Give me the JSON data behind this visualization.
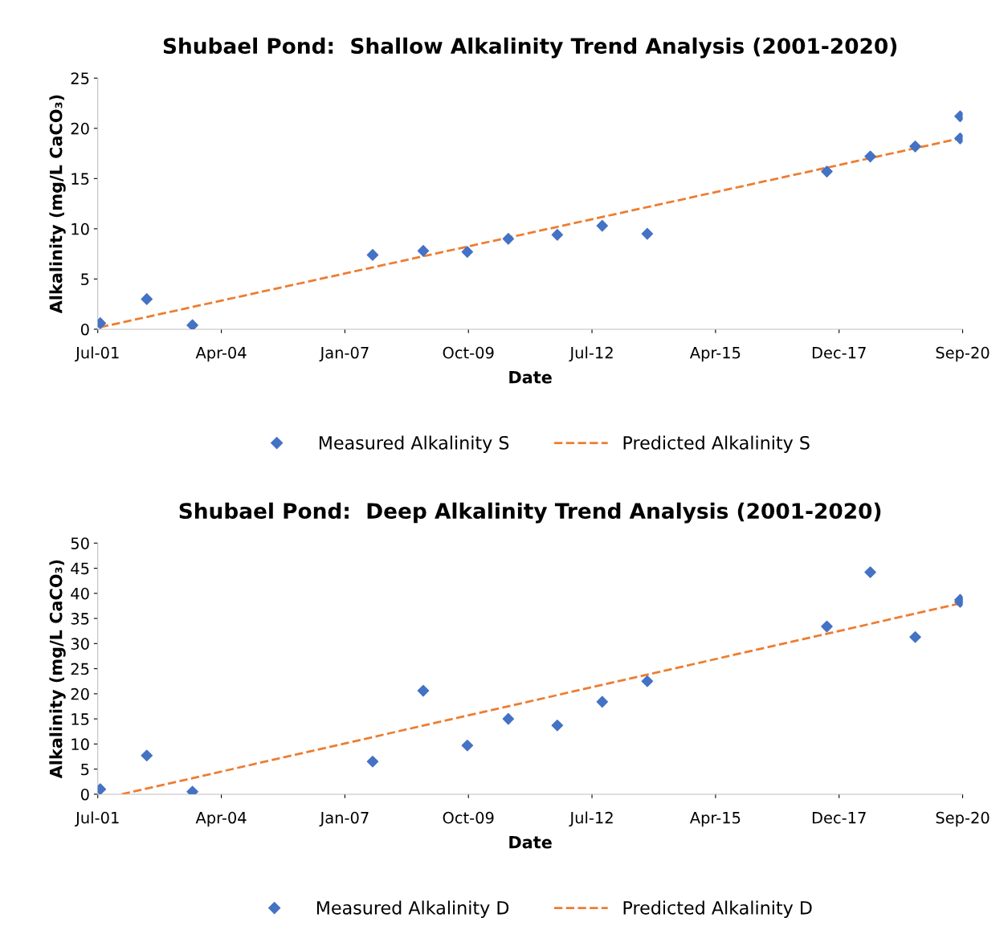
{
  "chart_data": [
    {
      "type": "scatter",
      "title": "Shubael Pond:  Shallow Alkalinity Trend Analysis (2001-2020)",
      "xlabel": "Date",
      "ylabel": "Alkalinity (mg/L CaCO₃)",
      "xlim": [
        "2001-07-20",
        "2020-09-25"
      ],
      "xticks": [
        {
          "value": "2001-07-20",
          "label": "Jul-01"
        },
        {
          "value": "2004-04-16",
          "label": "Apr-04"
        },
        {
          "value": "2007-01-12",
          "label": "Jan-07"
        },
        {
          "value": "2009-10-09",
          "label": "Oct-09"
        },
        {
          "value": "2012-07-06",
          "label": "Jul-12"
        },
        {
          "value": "2015-04-03",
          "label": "Apr-15"
        },
        {
          "value": "2017-12-29",
          "label": "Dec-17"
        },
        {
          "value": "2020-09-25",
          "label": "Sep-20"
        }
      ],
      "ylim": [
        0,
        25
      ],
      "yticks": [
        0,
        5,
        10,
        15,
        20,
        25
      ],
      "grid": false,
      "legend": "bottom",
      "series": [
        {
          "name": "Measured Alkalinity S",
          "marker": "diamond",
          "color": "#4472c4",
          "x": [
            "2001-08-09",
            "2002-08-21",
            "2003-08-26",
            "2007-08-25",
            "2008-10-08",
            "2009-09-30",
            "2010-08-28",
            "2011-09-29",
            "2012-09-27",
            "2013-09-27",
            "2017-09-21",
            "2018-09-08",
            "2019-09-07",
            "2020-09-05",
            "2020-09-05"
          ],
          "values": [
            0.6,
            3.0,
            0.4,
            7.4,
            7.8,
            7.7,
            9.0,
            9.4,
            10.3,
            9.5,
            15.7,
            17.2,
            18.2,
            19.0,
            21.2
          ]
        },
        {
          "name": "Predicted Alkalinity S",
          "type": "line",
          "line_style": "dashed",
          "color": "#ed7d31",
          "x": [
            "2001-08-09",
            "2020-09-05"
          ],
          "values": [
            0.2,
            19.0
          ]
        }
      ]
    },
    {
      "type": "scatter",
      "title": "Shubael Pond:  Deep Alkalinity Trend Analysis (2001-2020)",
      "xlabel": "Date",
      "ylabel": "Alkalinity (mg/L CaCO₃)",
      "xlim": [
        "2001-07-20",
        "2020-09-25"
      ],
      "xticks": [
        {
          "value": "2001-07-20",
          "label": "Jul-01"
        },
        {
          "value": "2004-04-16",
          "label": "Apr-04"
        },
        {
          "value": "2007-01-12",
          "label": "Jan-07"
        },
        {
          "value": "2009-10-09",
          "label": "Oct-09"
        },
        {
          "value": "2012-07-06",
          "label": "Jul-12"
        },
        {
          "value": "2015-04-03",
          "label": "Apr-15"
        },
        {
          "value": "2017-12-29",
          "label": "Dec-17"
        },
        {
          "value": "2020-09-25",
          "label": "Sep-20"
        }
      ],
      "ylim": [
        0,
        50
      ],
      "yticks": [
        0,
        5,
        10,
        15,
        20,
        25,
        30,
        35,
        40,
        45,
        50
      ],
      "grid": false,
      "legend": "bottom",
      "series": [
        {
          "name": "Measured Alkalinity D",
          "marker": "diamond",
          "color": "#4472c4",
          "x": [
            "2001-08-09",
            "2002-08-21",
            "2003-08-26",
            "2007-08-25",
            "2008-10-08",
            "2009-09-30",
            "2010-08-28",
            "2011-09-29",
            "2012-09-27",
            "2013-09-27",
            "2017-09-21",
            "2018-09-08",
            "2019-09-07",
            "2020-09-05",
            "2020-09-05"
          ],
          "values": [
            1.0,
            7.7,
            0.5,
            6.5,
            20.6,
            9.7,
            15.0,
            13.7,
            18.4,
            22.5,
            33.4,
            44.2,
            31.3,
            38.7,
            38.3
          ]
        },
        {
          "name": "Predicted Alkalinity D",
          "type": "line",
          "line_style": "dashed",
          "color": "#ed7d31",
          "x": [
            "2002-01-31",
            "2020-09-05"
          ],
          "values": [
            0.0,
            38.0
          ]
        }
      ]
    }
  ]
}
